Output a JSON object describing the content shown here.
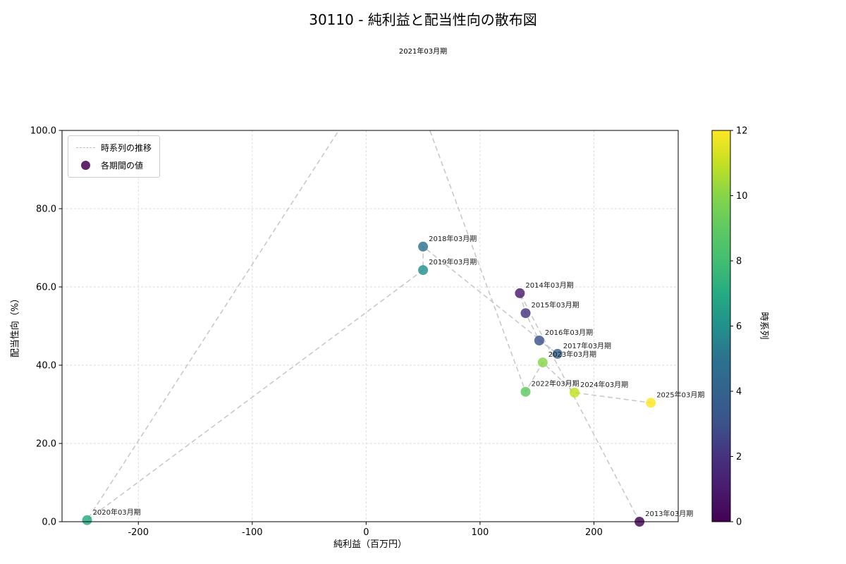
{
  "title": "30110 - 純利益と配当性向の散布図",
  "subtitle": "2021年03月期",
  "legend": {
    "position": "upper-left",
    "line_label": "時系列の推移",
    "point_label": "各期間の値"
  },
  "axes": {
    "xlabel": "純利益（百万円）",
    "ylabel": "配当性向（%）",
    "xlim": [
      -267,
      274
    ],
    "ylim": [
      0,
      100
    ],
    "xticks": [
      -200,
      -100,
      0,
      100,
      200
    ],
    "xtick_labels": [
      "-200",
      "-100",
      "0",
      "100",
      "200"
    ],
    "yticks": [
      0,
      20,
      40,
      60,
      80,
      100
    ],
    "ytick_labels": [
      "0.0",
      "20.0",
      "40.0",
      "60.0",
      "80.0",
      "100.0"
    ],
    "grid": true
  },
  "colorbar": {
    "label": "時系列",
    "min": 0,
    "max": 12,
    "ticks": [
      0,
      2,
      4,
      6,
      8,
      10,
      12
    ],
    "tick_labels": [
      "0",
      "2",
      "4",
      "6",
      "8",
      "10",
      "12"
    ],
    "colors": [
      "#440154",
      "#481b6d",
      "#46327e",
      "#3b528b",
      "#33638d",
      "#2c728e",
      "#21918c",
      "#25ab82",
      "#42be71",
      "#5ec962",
      "#86d549",
      "#c5e021",
      "#fde725"
    ]
  },
  "chart_data": {
    "type": "scatter",
    "title": "30110 - 純利益と配当性向の散布図",
    "xlabel": "純利益（百万円）",
    "ylabel": "配当性向（%）",
    "line_style": "dashed",
    "line_color": "#c9c9c9",
    "marker_alpha": 0.82,
    "points": [
      {
        "label": "2013年03月期",
        "x": 240,
        "y": 0.0,
        "c": 0
      },
      {
        "label": "2014年03月期",
        "x": 135,
        "y": 58.4,
        "c": 1
      },
      {
        "label": "2015年03月期",
        "x": 140,
        "y": 53.3,
        "c": 2
      },
      {
        "label": "2016年03月期",
        "x": 152,
        "y": 46.3,
        "c": 3
      },
      {
        "label": "2017年03月期",
        "x": 168,
        "y": 42.9,
        "c": 4
      },
      {
        "label": "2018年03月期",
        "x": 50,
        "y": 70.3,
        "c": 5
      },
      {
        "label": "2019年03月期",
        "x": 50,
        "y": 64.3,
        "c": 6
      },
      {
        "label": "2020年03月期",
        "x": -245,
        "y": 0.4,
        "c": 7
      },
      {
        "label": "2021年03月期",
        "x": 27,
        "y": 123.0,
        "c": 8
      },
      {
        "label": "2022年03月期",
        "x": 140,
        "y": 33.2,
        "c": 9
      },
      {
        "label": "2023年03月期",
        "x": 155,
        "y": 40.7,
        "c": 10
      },
      {
        "label": "2024年03月期",
        "x": 183,
        "y": 33.0,
        "c": 11
      },
      {
        "label": "2025年03月期",
        "x": 250,
        "y": 30.4,
        "c": 12
      }
    ]
  }
}
